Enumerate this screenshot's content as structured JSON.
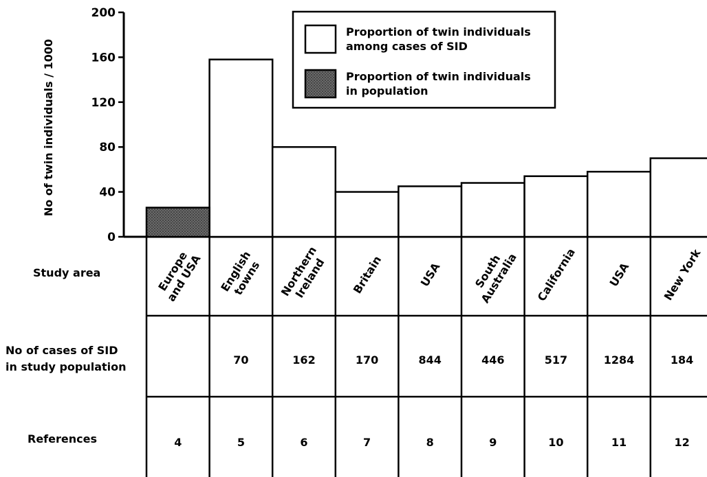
{
  "chart_data": {
    "type": "bar",
    "ylabel": "No of twin individuals / 1000",
    "ylim": [
      0,
      200
    ],
    "yticks": [
      "200",
      "160",
      "120",
      "80",
      "40",
      "0"
    ],
    "categories": [
      "Europe and USA",
      "English towns",
      "Northern Ireland",
      "Britain",
      "USA",
      "South Australia",
      "California",
      "USA",
      "New York"
    ],
    "series": [
      {
        "name": "Proportion of twin individuals among cases of SID",
        "color": "#ffffff",
        "values": [
          null,
          158,
          80,
          40,
          45,
          48,
          54,
          58,
          70
        ]
      },
      {
        "name": "Proportion of twin individuals in population",
        "color": "#555555",
        "values": [
          26,
          null,
          null,
          null,
          null,
          null,
          null,
          null,
          null
        ]
      }
    ],
    "legend_placement": "top-right",
    "grid": false
  },
  "legend": {
    "items": [
      {
        "line1": "Proportion of twin individuals",
        "line2": "among cases of SID"
      },
      {
        "line1": "Proportion of twin individuals",
        "line2": "in population"
      }
    ]
  },
  "table": {
    "row_labels": {
      "study_area": "Study area",
      "cases_line1": "No of cases of SID",
      "cases_line2": "in study population",
      "references": "References"
    },
    "study_area": [
      [
        "Europe",
        "and USA"
      ],
      [
        "English",
        "towns"
      ],
      [
        "Northern",
        "Ireland"
      ],
      [
        "Britain"
      ],
      [
        "USA"
      ],
      [
        "South",
        "Australia"
      ],
      [
        "California"
      ],
      [
        "USA"
      ],
      [
        "New York"
      ]
    ],
    "cases": [
      "",
      "70",
      "162",
      "170",
      "844",
      "446",
      "517",
      "1284",
      "184"
    ],
    "references": [
      "4",
      "5",
      "6",
      "7",
      "8",
      "9",
      "10",
      "11",
      "12"
    ]
  }
}
